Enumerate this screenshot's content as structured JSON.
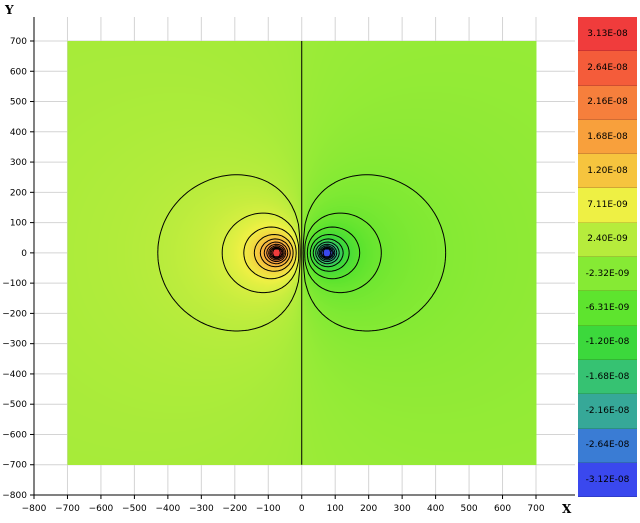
{
  "chart_data": {
    "type": "heatmap",
    "subtype": "contour",
    "xlabel": "X",
    "ylabel": "Y",
    "xlim": [
      -800,
      700
    ],
    "ylim": [
      -800,
      700
    ],
    "data_extent": {
      "x": [
        -700,
        700
      ],
      "y": [
        -700,
        700
      ]
    },
    "x_ticks": [
      -800,
      -700,
      -600,
      -500,
      -400,
      -300,
      -200,
      -100,
      0,
      100,
      200,
      300,
      400,
      500,
      600,
      700
    ],
    "y_ticks": [
      700,
      600,
      500,
      400,
      300,
      200,
      100,
      0,
      -100,
      -200,
      -300,
      -400,
      -500,
      -600,
      -700,
      -800
    ],
    "field": "dipole",
    "positive_pole": {
      "x": -75,
      "y": 0
    },
    "negative_pole": {
      "x": 75,
      "y": 0
    },
    "contour_line_color": "#000000",
    "grid": true,
    "legend_placement": "right",
    "legend": [
      {
        "label": "3.13E-08",
        "color": "#f03c3c"
      },
      {
        "label": "2.64E-08",
        "color": "#f45c3a"
      },
      {
        "label": "2.16E-08",
        "color": "#f67f3c"
      },
      {
        "label": "1.68E-08",
        "color": "#f8a03c"
      },
      {
        "label": "1.20E-08",
        "color": "#f6c43e"
      },
      {
        "label": "7.11E-09",
        "color": "#eef044"
      },
      {
        "label": "2.40E-09",
        "color": "#b6ec3c"
      },
      {
        "label": "-2.32E-09",
        "color": "#86ea34"
      },
      {
        "label": "-6.31E-09",
        "color": "#5ee42e"
      },
      {
        "label": "-1.20E-08",
        "color": "#3cd83c"
      },
      {
        "label": "-1.68E-08",
        "color": "#36c272"
      },
      {
        "label": "-2.16E-08",
        "color": "#36a898"
      },
      {
        "label": "-2.64E-08",
        "color": "#3a7cd4"
      },
      {
        "label": "-3.12E-08",
        "color": "#3a48ee"
      }
    ]
  }
}
